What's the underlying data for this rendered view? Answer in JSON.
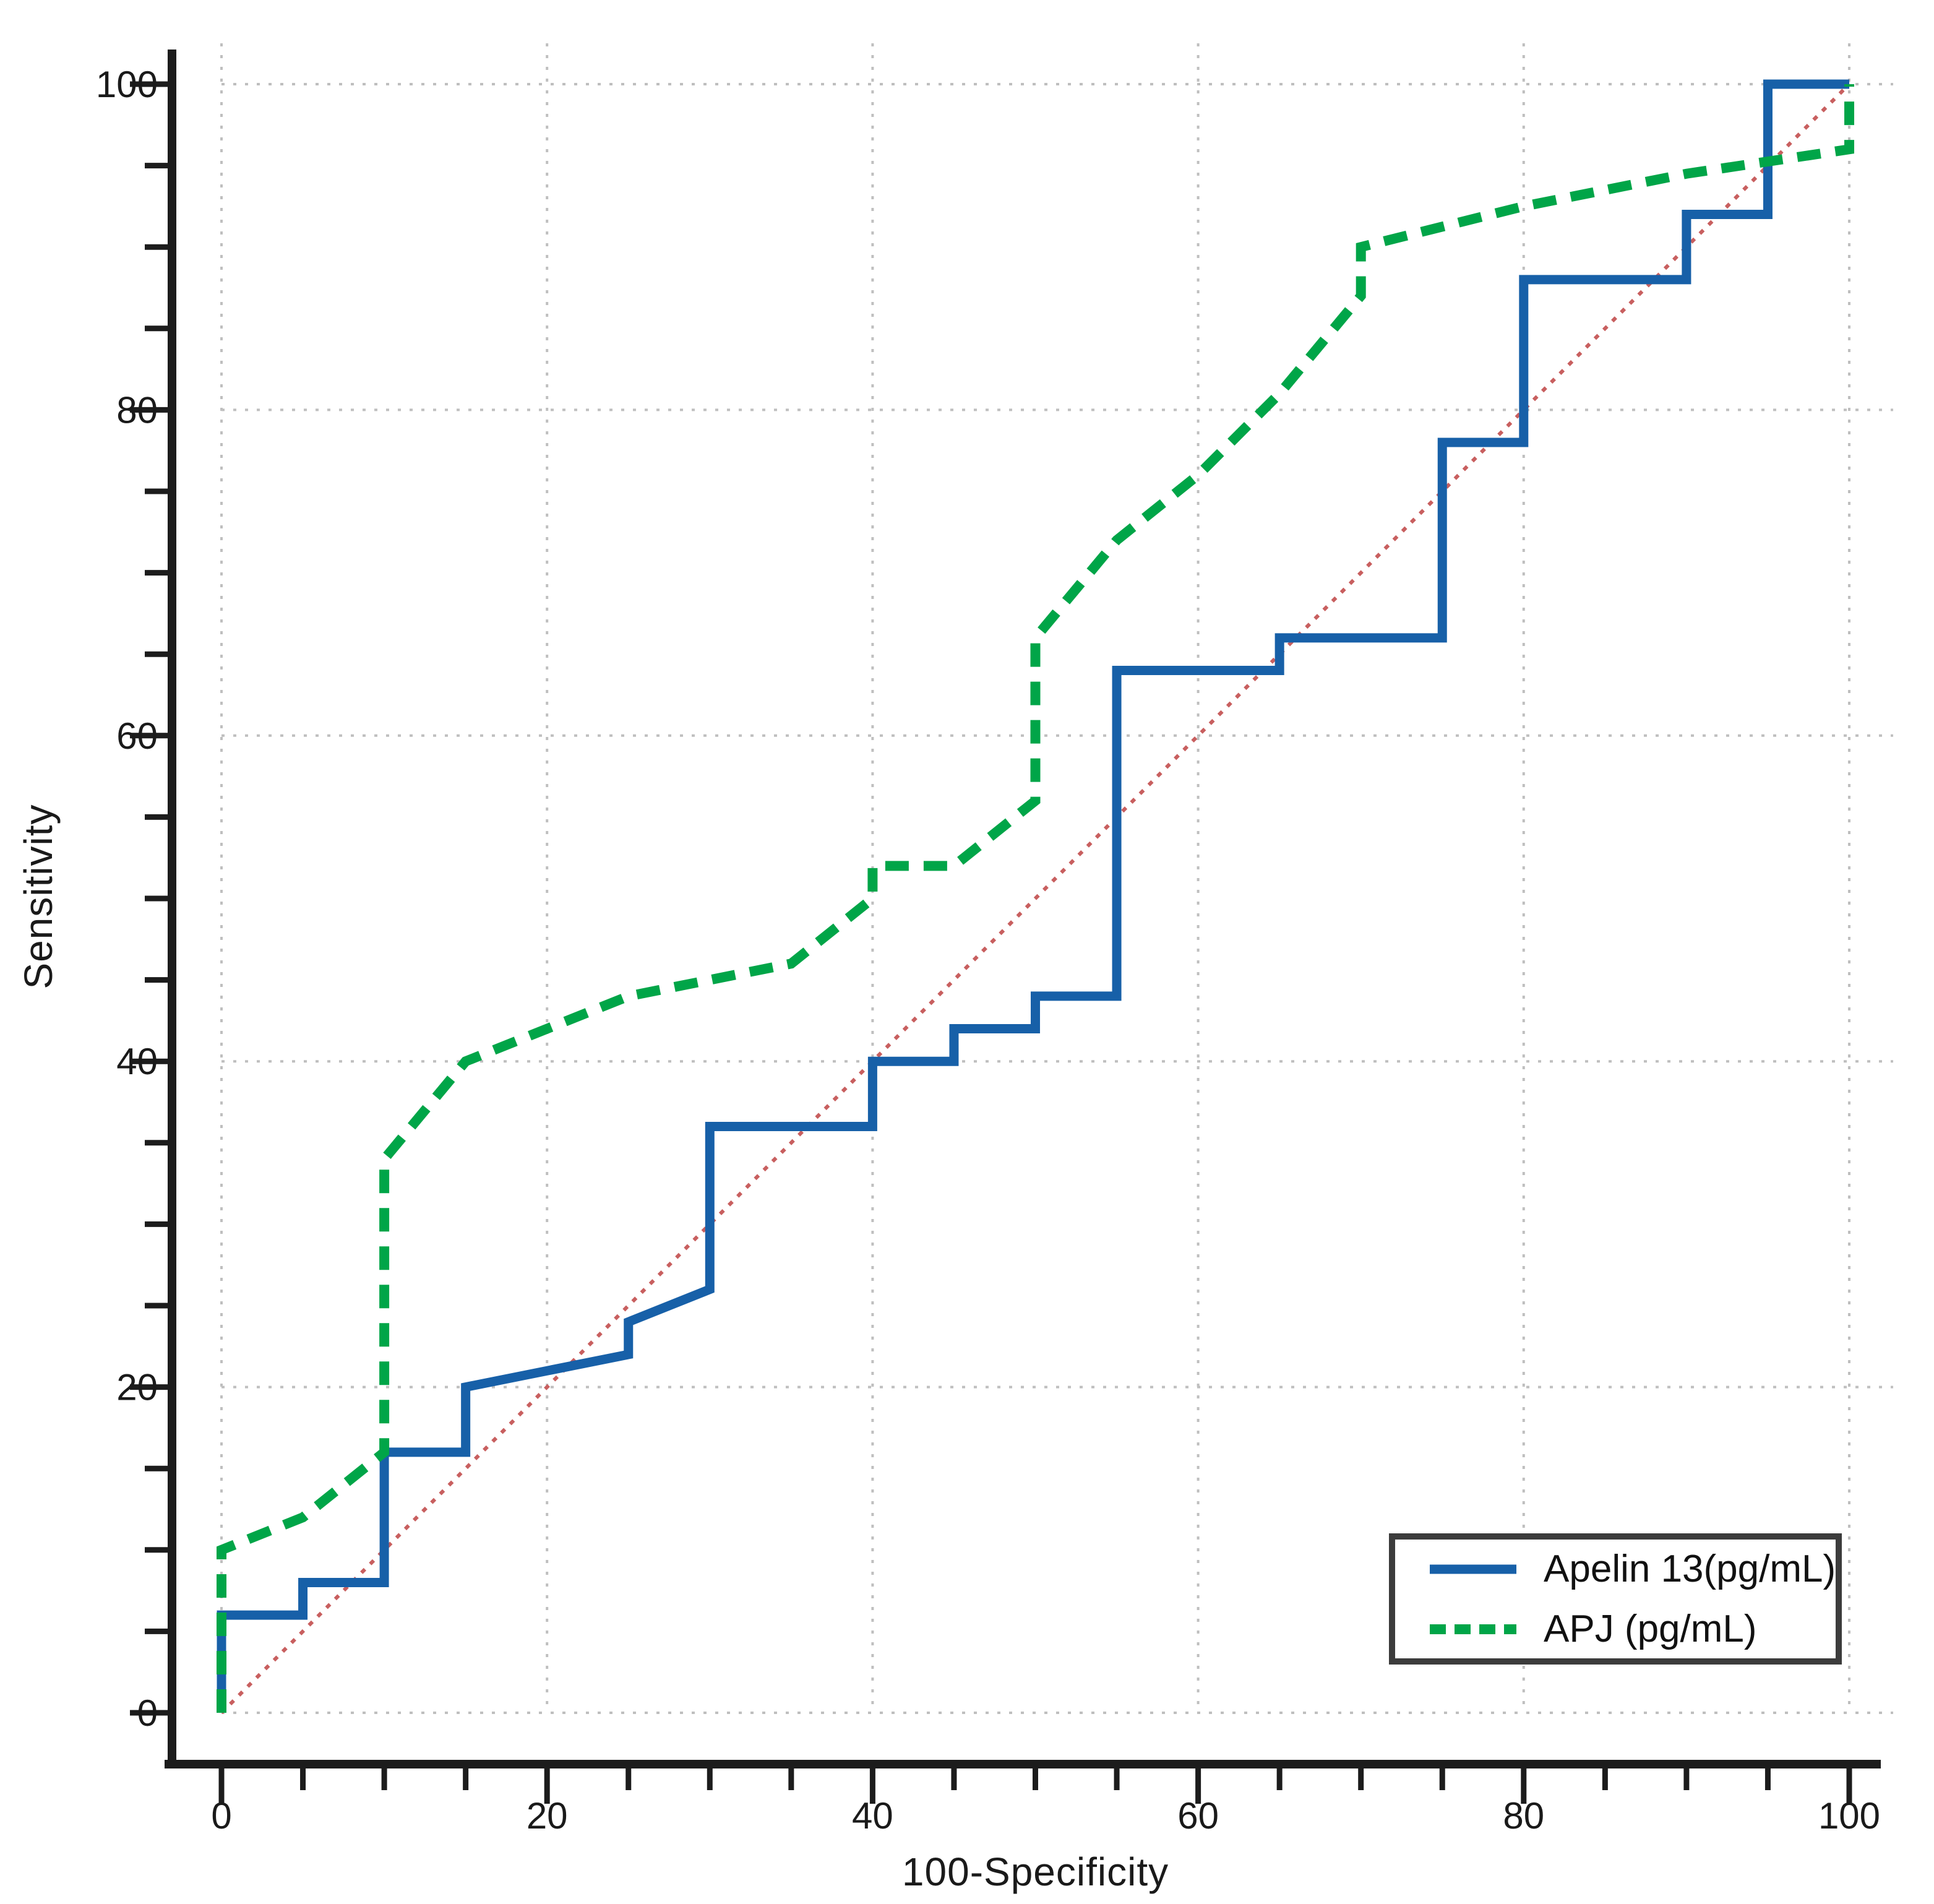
{
  "figure": {
    "background": "#ffffff",
    "description": "ROC curve comparison plot"
  },
  "chart_data": {
    "type": "line",
    "subtype": "roc-curves",
    "title": "",
    "xlabel": "100-Specificity",
    "ylabel": "Sensitivity",
    "xlim": [
      0,
      100
    ],
    "ylim": [
      0,
      100
    ],
    "xticks_major": [
      0,
      20,
      40,
      60,
      80,
      100
    ],
    "yticks_major": [
      0,
      20,
      40,
      60,
      80,
      100
    ],
    "xticks_minor_step": 5,
    "yticks_minor_step": 5,
    "grid": "dotted gridlines at major ticks, both axes",
    "legend_position": "bottom-right",
    "colors": {
      "grid": "#bfbfbf",
      "axis": "#1c1c1c",
      "text": "#1a1a1a",
      "legend_border": "#3c3c3c"
    },
    "reference_line": {
      "name": "chance diagonal",
      "color": "#c85f5f",
      "style": "dotted",
      "points": [
        [
          0,
          0
        ],
        [
          100,
          100
        ]
      ]
    },
    "series": [
      {
        "name": "Apelin 13(pg/mL)",
        "color": "#1760a8",
        "style": "solid",
        "points": [
          [
            0,
            0
          ],
          [
            0,
            6
          ],
          [
            5,
            6
          ],
          [
            5,
            8
          ],
          [
            10,
            8
          ],
          [
            10,
            16
          ],
          [
            15,
            16
          ],
          [
            15,
            20
          ],
          [
            25,
            22
          ],
          [
            25,
            24
          ],
          [
            30,
            26
          ],
          [
            30,
            36
          ],
          [
            40,
            36
          ],
          [
            40,
            40
          ],
          [
            45,
            40
          ],
          [
            45,
            42
          ],
          [
            50,
            42
          ],
          [
            50,
            44
          ],
          [
            55,
            44
          ],
          [
            55,
            64
          ],
          [
            65,
            64
          ],
          [
            65,
            66
          ],
          [
            75,
            66
          ],
          [
            75,
            78
          ],
          [
            80,
            78
          ],
          [
            80,
            88
          ],
          [
            90,
            88
          ],
          [
            90,
            92
          ],
          [
            95,
            92
          ],
          [
            95,
            100
          ],
          [
            100,
            100
          ]
        ]
      },
      {
        "name": "APJ (pg/mL)",
        "color": "#00a548",
        "style": "dashed",
        "points": [
          [
            0,
            0
          ],
          [
            0,
            10
          ],
          [
            5,
            12
          ],
          [
            10,
            16
          ],
          [
            10,
            34
          ],
          [
            15,
            40
          ],
          [
            20,
            42
          ],
          [
            25,
            44
          ],
          [
            30,
            45
          ],
          [
            35,
            46
          ],
          [
            40,
            50
          ],
          [
            40,
            52
          ],
          [
            45,
            52
          ],
          [
            50,
            56
          ],
          [
            50,
            66
          ],
          [
            55,
            72
          ],
          [
            60,
            76
          ],
          [
            65,
            81
          ],
          [
            70,
            87
          ],
          [
            70,
            90
          ],
          [
            80,
            92.5
          ],
          [
            90,
            94.5
          ],
          [
            100,
            96
          ],
          [
            100,
            100
          ]
        ]
      }
    ]
  }
}
